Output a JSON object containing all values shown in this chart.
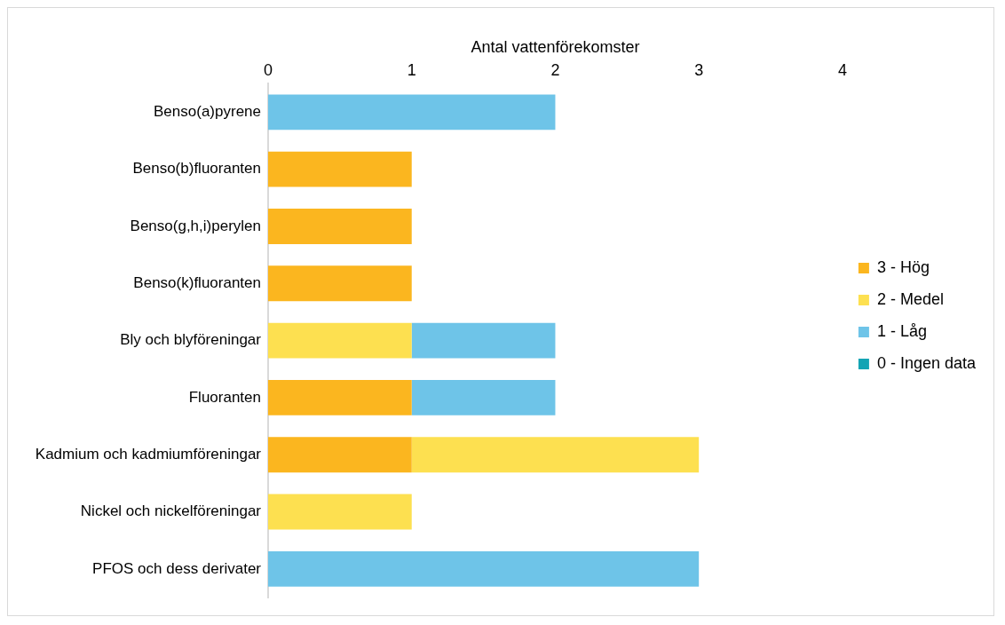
{
  "chart_data": {
    "type": "bar",
    "orientation": "horizontal",
    "stacked": true,
    "xlabel": "Antal vattenförekomster",
    "categories": [
      "Benso(a)pyrene",
      "Benso(b)fluoranten",
      "Benso(g,h,i)perylen",
      "Benso(k)fluoranten",
      "Bly och blyföreningar",
      "Fluoranten",
      "Kadmium och kadmiumföreningar",
      "Nickel och nickelföreningar",
      "PFOS och dess derivater"
    ],
    "series": [
      {
        "name": "3 - Hög",
        "color": "#fbb61f",
        "values": [
          0,
          1,
          1,
          1,
          0,
          1,
          1,
          0,
          0
        ]
      },
      {
        "name": "2 - Medel",
        "color": "#fde050",
        "values": [
          0,
          0,
          0,
          0,
          1,
          0,
          2,
          1,
          0
        ]
      },
      {
        "name": "1 - Låg",
        "color": "#6ec4e8",
        "values": [
          2,
          0,
          0,
          0,
          1,
          1,
          0,
          0,
          3
        ]
      },
      {
        "name": "0 - Ingen data",
        "color": "#13a4b4",
        "values": [
          0,
          0,
          0,
          0,
          0,
          0,
          0,
          0,
          0
        ]
      }
    ],
    "xlim": [
      0,
      4
    ],
    "xticks": [
      0,
      1,
      2,
      3,
      4
    ],
    "grid": false,
    "legend": "right"
  }
}
